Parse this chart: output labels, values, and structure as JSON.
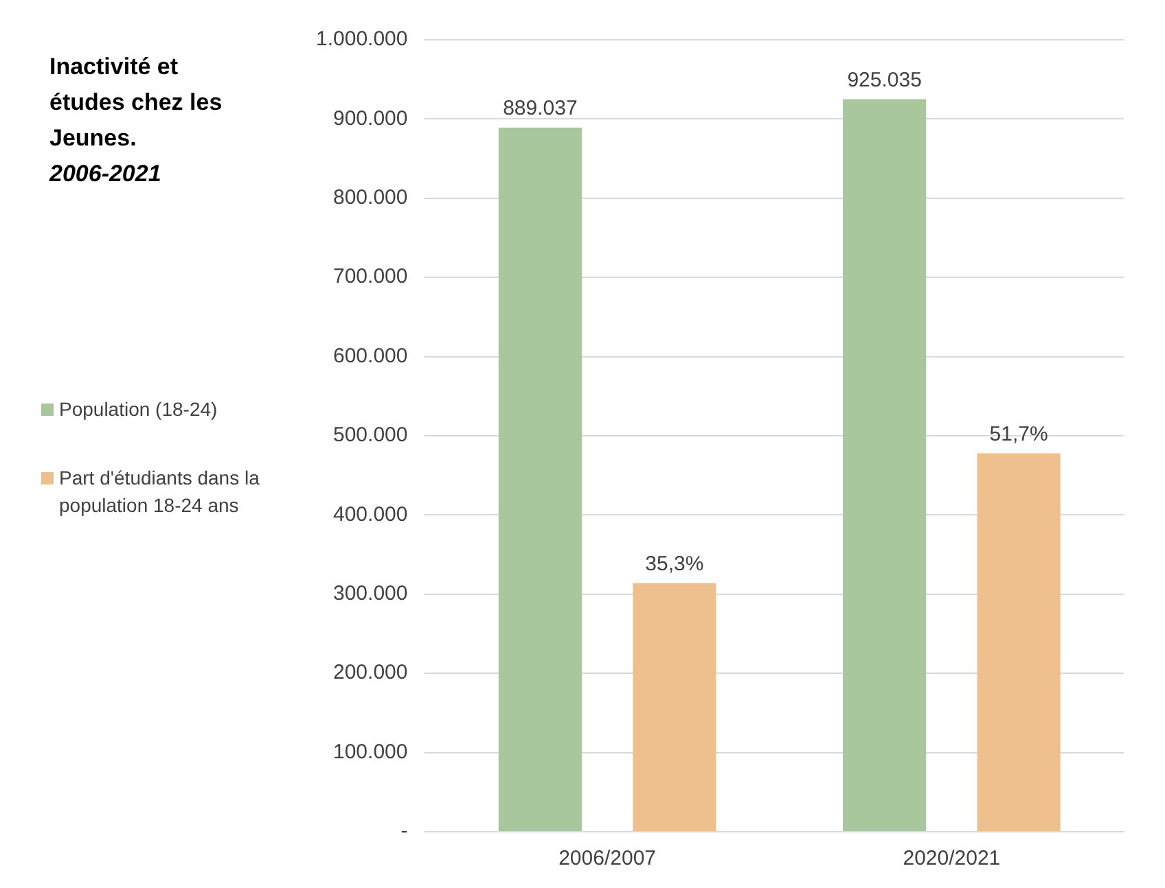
{
  "chart_data": {
    "type": "bar",
    "title": "Inactivité et études chez les Jeunes.",
    "subtitle": "2006-2021",
    "categories": [
      "2006/2007",
      "2020/2021"
    ],
    "series": [
      {
        "name": "Population  (18-24)",
        "color": "#a9c79c",
        "values": [
          889037,
          925035
        ],
        "value_labels": [
          "889.037",
          "925.035"
        ]
      },
      {
        "name": "Part d'étudiants dans la population 18-24 ans",
        "color": "#eec08e",
        "values": [
          314000,
          478000
        ]
      }
    ],
    "annotations": [
      "35,3%",
      "51,7%"
    ],
    "ylim": [
      0,
      1000000
    ],
    "yticks": [
      {
        "value": 0,
        "label": "-"
      },
      {
        "value": 100000,
        "label": "100.000"
      },
      {
        "value": 200000,
        "label": "200.000"
      },
      {
        "value": 300000,
        "label": "300.000"
      },
      {
        "value": 400000,
        "label": "400.000"
      },
      {
        "value": 500000,
        "label": "500.000"
      },
      {
        "value": 600000,
        "label": "600.000"
      },
      {
        "value": 700000,
        "label": "700.000"
      },
      {
        "value": 800000,
        "label": "800.000"
      },
      {
        "value": 900000,
        "label": "900.000"
      },
      {
        "value": 1000000,
        "label": "1.000.000"
      }
    ],
    "grid": "y",
    "legend": "left"
  }
}
